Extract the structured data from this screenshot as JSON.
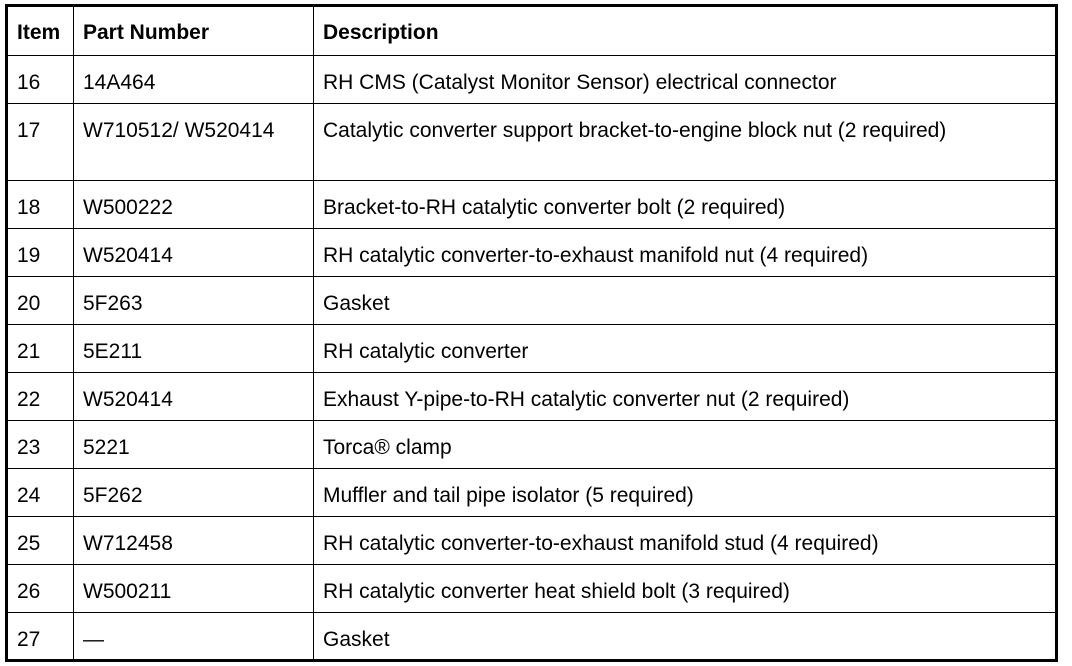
{
  "headers": {
    "item": "Item",
    "part": "Part Number",
    "desc": "Description"
  },
  "rows": [
    {
      "item": "16",
      "part": "14A464",
      "desc": "RH CMS (Catalyst Monitor Sensor) electrical connector"
    },
    {
      "item": "17",
      "part": "W710512/ W520414",
      "desc": "Catalytic converter support bracket-to-engine block nut (2 required)"
    },
    {
      "item": "18",
      "part": "W500222",
      "desc": "Bracket-to-RH catalytic converter bolt (2 required)"
    },
    {
      "item": "19",
      "part": "W520414",
      "desc": "RH catalytic converter-to-exhaust manifold nut (4 required)"
    },
    {
      "item": "20",
      "part": "5F263",
      "desc": "Gasket"
    },
    {
      "item": "21",
      "part": "5E211",
      "desc": "RH catalytic converter"
    },
    {
      "item": "22",
      "part": "W520414",
      "desc": "Exhaust Y-pipe-to-RH catalytic converter nut (2 required)"
    },
    {
      "item": "23",
      "part": "5221",
      "desc": "Torca® clamp"
    },
    {
      "item": "24",
      "part": "5F262",
      "desc": "Muffler and tail pipe isolator (5 required)"
    },
    {
      "item": "25",
      "part": "W712458",
      "desc": "RH catalytic converter-to-exhaust manifold stud (4 required)"
    },
    {
      "item": "26",
      "part": "W500211",
      "desc": "RH catalytic converter heat shield bolt (3 required)"
    },
    {
      "item": "27",
      "part": "—",
      "desc": "Gasket"
    }
  ]
}
